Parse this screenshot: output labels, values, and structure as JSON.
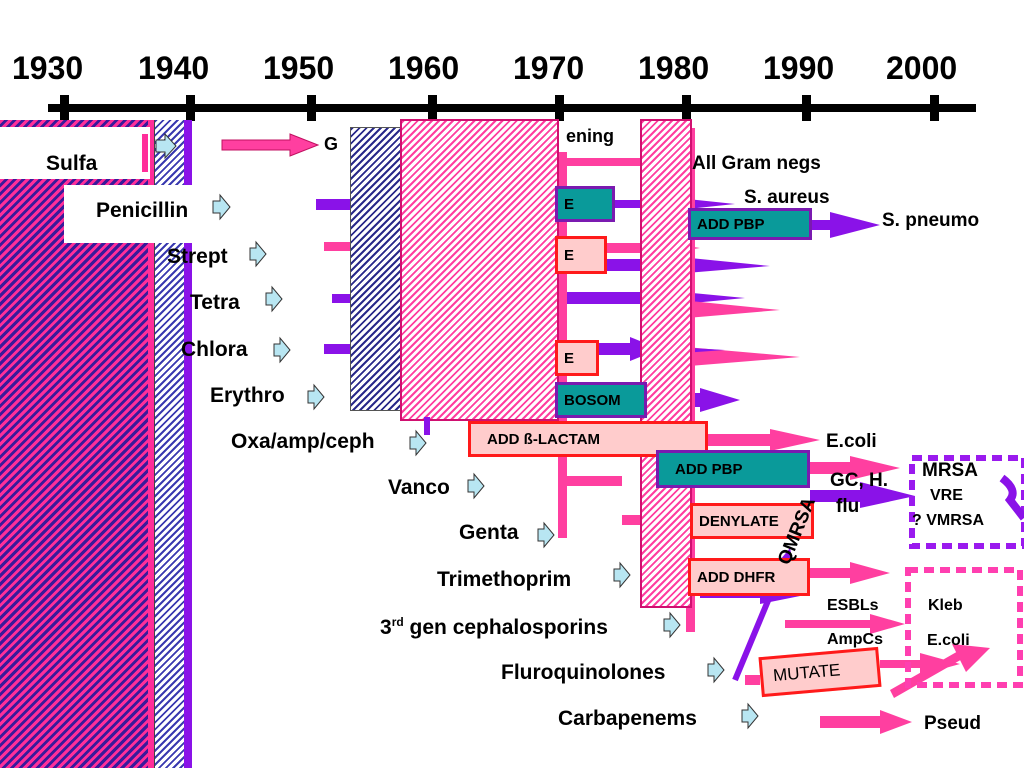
{
  "timeline": {
    "years": [
      "1930",
      "1940",
      "1950",
      "1960",
      "1970",
      "1980",
      "1990",
      "2000"
    ]
  },
  "drugs": [
    {
      "name": "Sulfa"
    },
    {
      "name": "Penicillin"
    },
    {
      "name": "Strept"
    },
    {
      "name": "Tetra"
    },
    {
      "name": "Chlora"
    },
    {
      "name": "Erythro"
    },
    {
      "name": "Oxa/amp/ceph"
    },
    {
      "name": "Vanco"
    },
    {
      "name": "Genta"
    },
    {
      "name": "Trimethoprim"
    },
    {
      "name": "3rd gen cephalosporins",
      "prefix": "3",
      "sup": "rd",
      "suffix": " gen cephalosporins"
    },
    {
      "name": "Fluroquinolones"
    },
    {
      "name": "Carbapenems"
    }
  ],
  "mechanisms": {
    "screening_partial": "ening",
    "go_partial": "G",
    "teal_e": "E",
    "pink_e1": "E",
    "pink_e2": "E",
    "ribosom": "BOSOM",
    "add_pbp_top": "ADD PBP",
    "add_beta_lactam": "ADD ß-LACTAM",
    "add_pbp_mid": "ADD PBP",
    "adenylate": "DENYLATE",
    "add_dhfr": "ADD DHFR",
    "mutate": "MUTATE"
  },
  "organisms": {
    "all_gram_negs": "All Gram negs",
    "s_aureus": "S. aureus",
    "s_pneumo": "S. pneumo",
    "e_coli_1": "E.coli",
    "mrsa": "MRSA",
    "vre": "VRE",
    "vmrsa": "? VMRSA",
    "gc_h": "GC, H.",
    "flu": "flu",
    "qmrsa": "QMRSA",
    "esbls": "ESBLs",
    "kleb": "Kleb",
    "ampcs": "AmpCs",
    "e_coli_2": "E.coli",
    "pseud": "Pseud"
  },
  "colors": {
    "pink": "#ff3fa0",
    "purple": "#8a12e8",
    "teal": "#0a9a9a",
    "red": "#ff1a1a",
    "magenta_dash": "#ff3fb0",
    "purple_dash": "#9a1aee"
  },
  "icons": [
    "arrow-right-icon"
  ]
}
